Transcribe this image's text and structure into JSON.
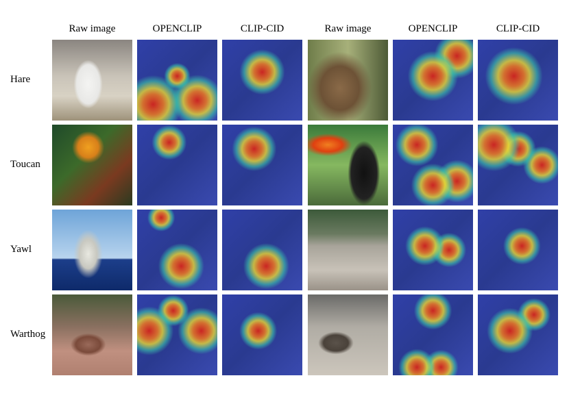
{
  "columns": [
    "Raw image",
    "OPENCLIP",
    "CLIP-CID",
    "Raw image",
    "OPENCLIP",
    "CLIP-CID"
  ],
  "rows": [
    "Hare",
    "Toucan",
    "Yawl",
    "Warthog"
  ]
}
